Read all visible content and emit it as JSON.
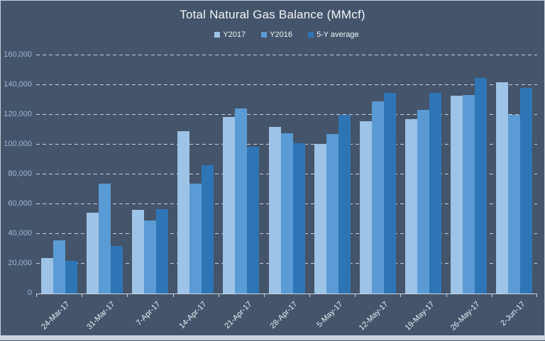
{
  "window": {
    "background_color": "#44546a",
    "border_color": "#c9cfd9",
    "bottom_strip_color": "#ccd3df"
  },
  "chart_data": {
    "type": "bar",
    "title": "Total Natural Gas Balance (MMcf)",
    "xlabel": "",
    "ylabel": "",
    "legend_position": "top",
    "grid": "dashed-horizontal",
    "ylim": [
      0,
      160000
    ],
    "ytick_step": 20000,
    "ytick_labels": [
      "0",
      "20,000",
      "40,000",
      "60,000",
      "80,000",
      "100,000",
      "120,000",
      "140,000",
      "160,000"
    ],
    "categories": [
      "24-Mar-17",
      "31-Mar-17",
      "7-Apr-17",
      "14-Apr-17",
      "21-Apr-17",
      "28-Apr-17",
      "5-May-17",
      "12-May-17",
      "19-May-17",
      "26-May-17",
      "2-Jun-17"
    ],
    "series": [
      {
        "name": "Y2017",
        "color": "#9dc3e6",
        "values": [
          24000,
          54500,
          56000,
          109000,
          118500,
          112000,
          100500,
          115500,
          117000,
          133000,
          142000
        ]
      },
      {
        "name": "Y2016",
        "color": "#5b9bd5",
        "values": [
          35500,
          74000,
          49000,
          74000,
          124500,
          107500,
          107000,
          129000,
          123500,
          133500,
          120000
        ]
      },
      {
        "name": "5-Y average",
        "color": "#2e75b6",
        "values": [
          22000,
          32000,
          56500,
          86000,
          98500,
          101000,
          120000,
          135000,
          135000,
          145000,
          138000
        ]
      }
    ],
    "colors": {
      "title_text": "#f1f4f8",
      "legend_text": "#f1f4f8",
      "y_tick_text": "#9cb6d6",
      "x_tick_text": "#e9eef5",
      "gridline": "rgba(255,255,255,0.72)",
      "axis_line": "#ccd4e0"
    }
  }
}
